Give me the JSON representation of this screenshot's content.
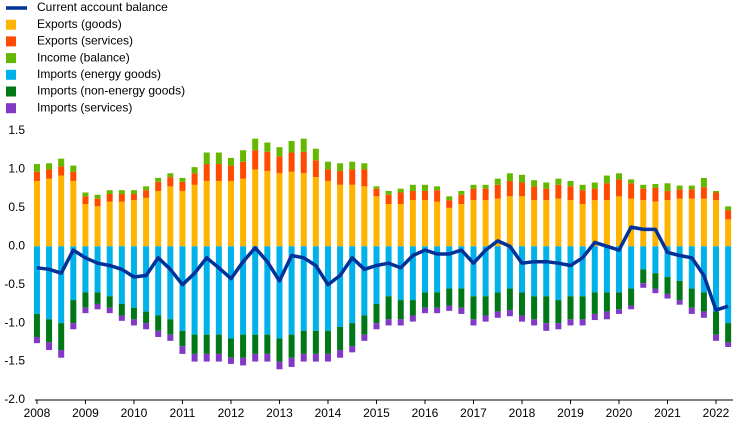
{
  "chart_data": {
    "type": "bar",
    "stacked": true,
    "x": [
      2008,
      2008.25,
      2008.5,
      2008.75,
      2009,
      2009.25,
      2009.5,
      2009.75,
      2010,
      2010.25,
      2010.5,
      2010.75,
      2011,
      2011.25,
      2011.5,
      2011.75,
      2012,
      2012.25,
      2012.5,
      2012.75,
      2013,
      2013.25,
      2013.5,
      2013.75,
      2014,
      2014.25,
      2014.5,
      2014.75,
      2015,
      2015.25,
      2015.5,
      2015.75,
      2016,
      2016.25,
      2016.5,
      2016.75,
      2017,
      2017.25,
      2017.5,
      2017.75,
      2018,
      2018.25,
      2018.5,
      2018.75,
      2019,
      2019.25,
      2019.5,
      2019.75,
      2020,
      2020.25,
      2020.5,
      2020.75,
      2021,
      2021.25,
      2021.5,
      2021.75,
      2022,
      2022.25
    ],
    "xlim": [
      2007.96,
      2022.35
    ],
    "xticks": [
      2008,
      2009,
      2010,
      2011,
      2012,
      2013,
      2014,
      2015,
      2016,
      2017,
      2018,
      2019,
      2020,
      2021,
      2022
    ],
    "ylim": [
      -2,
      1.5
    ],
    "yticks": [
      1.5,
      {
        "value": 1,
        "label": "1.0"
      },
      0.5,
      {
        "value": 0,
        "label": "0.0"
      },
      -0.5,
      {
        "value": -1,
        "label": "-1.0"
      },
      -1.5,
      {
        "value": -2,
        "label": "-2.0"
      }
    ],
    "grid": false,
    "legend": "top-left",
    "series": [
      {
        "name": "Current account balance",
        "color": "#003299",
        "type": "line",
        "values": [
          -0.28,
          -0.3,
          -0.35,
          -0.05,
          -0.15,
          -0.22,
          -0.25,
          -0.3,
          -0.4,
          -0.38,
          -0.15,
          -0.3,
          -0.5,
          -0.35,
          -0.15,
          -0.28,
          -0.42,
          -0.2,
          -0.02,
          -0.2,
          -0.45,
          -0.12,
          -0.15,
          -0.25,
          -0.5,
          -0.38,
          -0.15,
          -0.3,
          -0.25,
          -0.22,
          -0.28,
          -0.12,
          -0.05,
          -0.1,
          -0.1,
          -0.05,
          -0.22,
          -0.05,
          0.07,
          0,
          -0.22,
          -0.2,
          -0.2,
          -0.22,
          -0.25,
          -0.15,
          0.05,
          0,
          -0.05,
          0.25,
          0.22,
          0.22,
          -0.08,
          -0.12,
          -0.15,
          -0.38,
          -0.83,
          -0.78
        ]
      },
      {
        "name": "Exports (goods)",
        "color": "#ffb400",
        "values": [
          0.85,
          0.88,
          0.92,
          0.85,
          0.55,
          0.52,
          0.58,
          0.58,
          0.6,
          0.63,
          0.72,
          0.78,
          0.72,
          0.8,
          0.85,
          0.85,
          0.85,
          0.88,
          1.0,
          0.98,
          0.95,
          0.97,
          0.95,
          0.9,
          0.85,
          0.8,
          0.8,
          0.78,
          0.65,
          0.55,
          0.55,
          0.6,
          0.6,
          0.58,
          0.5,
          0.55,
          0.6,
          0.6,
          0.62,
          0.65,
          0.65,
          0.6,
          0.6,
          0.62,
          0.6,
          0.55,
          0.6,
          0.6,
          0.65,
          0.62,
          0.6,
          0.58,
          0.6,
          0.62,
          0.62,
          0.62,
          0.6,
          0.35
        ]
      },
      {
        "name": "Exports (services)",
        "color": "#ff4b00",
        "values": [
          0.12,
          0.12,
          0.12,
          0.12,
          0.1,
          0.1,
          0.1,
          0.1,
          0.08,
          0.1,
          0.12,
          0.12,
          0.12,
          0.15,
          0.22,
          0.22,
          0.2,
          0.22,
          0.25,
          0.25,
          0.22,
          0.25,
          0.28,
          0.22,
          0.15,
          0.18,
          0.2,
          0.22,
          0.1,
          0.12,
          0.15,
          0.12,
          0.12,
          0.15,
          0.1,
          0.12,
          0.15,
          0.15,
          0.18,
          0.2,
          0.18,
          0.18,
          0.15,
          0.18,
          0.18,
          0.18,
          0.15,
          0.22,
          0.22,
          0.2,
          0.15,
          0.18,
          0.12,
          0.12,
          0.12,
          0.15,
          0.1,
          0.12
        ]
      },
      {
        "name": "Income (balance)",
        "color": "#65b800",
        "values": [
          0.1,
          0.08,
          0.1,
          0.08,
          0.05,
          0.05,
          0.05,
          0.05,
          0.05,
          0.05,
          0.05,
          0.05,
          0.05,
          0.08,
          0.15,
          0.15,
          0.1,
          0.15,
          0.15,
          0.12,
          0.12,
          0.15,
          0.17,
          0.15,
          0.1,
          0.1,
          0.1,
          0.08,
          0.03,
          0.05,
          0.05,
          0.08,
          0.08,
          0.05,
          0.05,
          0.05,
          0.05,
          0.05,
          0.08,
          0.1,
          0.1,
          0.08,
          0.08,
          0.08,
          0.07,
          0.07,
          0.08,
          0.1,
          0.08,
          0.05,
          0.05,
          0.05,
          0.1,
          0.05,
          0.05,
          0.12,
          0.02,
          0.05
        ]
      },
      {
        "name": "Imports (energy goods)",
        "color": "#00b1ea",
        "values": [
          -0.88,
          -0.95,
          -1.0,
          -0.7,
          -0.6,
          -0.6,
          -0.65,
          -0.75,
          -0.8,
          -0.85,
          -0.9,
          -0.95,
          -1.1,
          -1.15,
          -1.15,
          -1.15,
          -1.2,
          -1.15,
          -1.15,
          -1.15,
          -1.2,
          -1.15,
          -1.1,
          -1.1,
          -1.1,
          -1.05,
          -1.0,
          -0.9,
          -0.75,
          -0.65,
          -0.7,
          -0.7,
          -0.6,
          -0.6,
          -0.55,
          -0.55,
          -0.65,
          -0.65,
          -0.6,
          -0.55,
          -0.6,
          -0.65,
          -0.65,
          -0.7,
          -0.65,
          -0.65,
          -0.6,
          -0.6,
          -0.6,
          -0.55,
          -0.3,
          -0.35,
          -0.4,
          -0.45,
          -0.55,
          -0.6,
          -0.85,
          -1.0
        ]
      },
      {
        "name": "Imports (non-energy goods)",
        "color": "#007816",
        "values": [
          -0.3,
          -0.3,
          -0.35,
          -0.3,
          -0.2,
          -0.15,
          -0.15,
          -0.15,
          -0.15,
          -0.15,
          -0.2,
          -0.2,
          -0.2,
          -0.25,
          -0.25,
          -0.25,
          -0.25,
          -0.3,
          -0.25,
          -0.25,
          -0.3,
          -0.3,
          -0.3,
          -0.3,
          -0.3,
          -0.3,
          -0.3,
          -0.25,
          -0.25,
          -0.3,
          -0.25,
          -0.2,
          -0.2,
          -0.2,
          -0.22,
          -0.25,
          -0.3,
          -0.25,
          -0.25,
          -0.28,
          -0.3,
          -0.3,
          -0.35,
          -0.3,
          -0.3,
          -0.3,
          -0.28,
          -0.25,
          -0.22,
          -0.22,
          -0.18,
          -0.2,
          -0.22,
          -0.25,
          -0.25,
          -0.25,
          -0.3,
          -0.25
        ]
      },
      {
        "name": "Imports (services)",
        "color": "#8139c6",
        "values": [
          -0.08,
          -0.1,
          -0.1,
          -0.08,
          -0.07,
          -0.07,
          -0.07,
          -0.07,
          -0.08,
          -0.08,
          -0.08,
          -0.08,
          -0.1,
          -0.1,
          -0.1,
          -0.1,
          -0.08,
          -0.1,
          -0.1,
          -0.1,
          -0.1,
          -0.12,
          -0.1,
          -0.1,
          -0.1,
          -0.1,
          -0.08,
          -0.08,
          -0.08,
          -0.08,
          -0.08,
          -0.08,
          -0.07,
          -0.07,
          -0.07,
          -0.08,
          -0.08,
          -0.08,
          -0.08,
          -0.08,
          -0.08,
          -0.08,
          -0.1,
          -0.08,
          -0.08,
          -0.08,
          -0.08,
          -0.1,
          -0.06,
          -0.05,
          -0.06,
          -0.06,
          -0.06,
          -0.06,
          -0.08,
          -0.08,
          -0.08,
          -0.06
        ]
      }
    ]
  }
}
